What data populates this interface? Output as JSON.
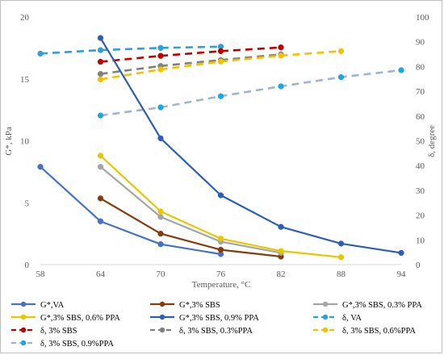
{
  "chart_data": {
    "type": "line",
    "xlabel": "Temperature, °C",
    "ylabel_left": "G*, kPa",
    "ylabel_right": "δ, degree",
    "x_ticks": [
      58,
      64,
      70,
      76,
      82,
      88,
      94
    ],
    "x_range": [
      58,
      94
    ],
    "y_left_range": [
      0,
      20
    ],
    "y_left_ticks": [
      0,
      5,
      10,
      15,
      20
    ],
    "y_right_range": [
      0,
      100
    ],
    "y_right_ticks": [
      0,
      10,
      20,
      30,
      40,
      50,
      60,
      70,
      80,
      90,
      100
    ],
    "grid": false,
    "legend_position": "bottom",
    "series": [
      {
        "name": "G*,VA",
        "axis": "left",
        "style": "solid",
        "color": "#4472C4",
        "x": [
          58,
          64,
          70,
          76
        ],
        "y": [
          7.9,
          3.5,
          1.65,
          0.85
        ]
      },
      {
        "name": "G*,3% SBS",
        "axis": "left",
        "style": "solid",
        "color": "#843C0C",
        "x": [
          64,
          70,
          76,
          82
        ],
        "y": [
          5.35,
          2.5,
          1.2,
          0.65
        ]
      },
      {
        "name": "G*,3% SBS, 0.3% PPA",
        "axis": "left",
        "style": "solid",
        "color": "#A5A5A5",
        "x": [
          64,
          70,
          76,
          82
        ],
        "y": [
          7.9,
          3.85,
          1.85,
          0.95
        ]
      },
      {
        "name": "G*,3% SBS, 0.6% PPA",
        "axis": "left",
        "style": "solid",
        "color": "#E6C700",
        "x": [
          64,
          70,
          76,
          82,
          88
        ],
        "y": [
          8.8,
          4.3,
          2.1,
          1.1,
          0.6
        ]
      },
      {
        "name": "G*,3% SBS, 0.9% PPA",
        "axis": "left",
        "style": "solid",
        "color": "#2E5DB8",
        "x": [
          64,
          70,
          76,
          82,
          88,
          94
        ],
        "y": [
          18.3,
          10.2,
          5.6,
          3.05,
          1.7,
          0.95
        ]
      },
      {
        "name": "δ, VA",
        "axis": "right",
        "style": "dashed",
        "color": "#2E9FD8",
        "x": [
          58,
          64,
          70,
          76
        ],
        "y": [
          85.2,
          86.6,
          87.5,
          88.0
        ]
      },
      {
        "name": "δ, 3% SBS",
        "axis": "right",
        "style": "dashed",
        "color": "#C00000",
        "x": [
          64,
          70,
          76,
          82
        ],
        "y": [
          81.9,
          84.3,
          86.2,
          87.7
        ]
      },
      {
        "name": "δ, 3% SBS, 0.3%PPA",
        "axis": "right",
        "style": "dashed",
        "color": "#808080",
        "x": [
          64,
          70,
          76,
          82
        ],
        "y": [
          77.0,
          80.2,
          82.6,
          84.9
        ]
      },
      {
        "name": "δ, 3% SBS, 0.6%PPA",
        "axis": "right",
        "style": "dashed",
        "color": "#F2C200",
        "x": [
          64,
          70,
          76,
          82,
          88
        ],
        "y": [
          74.8,
          78.8,
          82.0,
          84.4,
          86.2
        ]
      },
      {
        "name": "δ, 3% SBS, 0.9%PPA",
        "axis": "right",
        "style": "dashed",
        "color": "#9DB5CF",
        "marker_color": "#1AA8E0",
        "x": [
          64,
          70,
          76,
          82,
          88,
          94
        ],
        "y": [
          60.2,
          63.5,
          68.0,
          72.0,
          75.7,
          78.5
        ]
      }
    ]
  }
}
